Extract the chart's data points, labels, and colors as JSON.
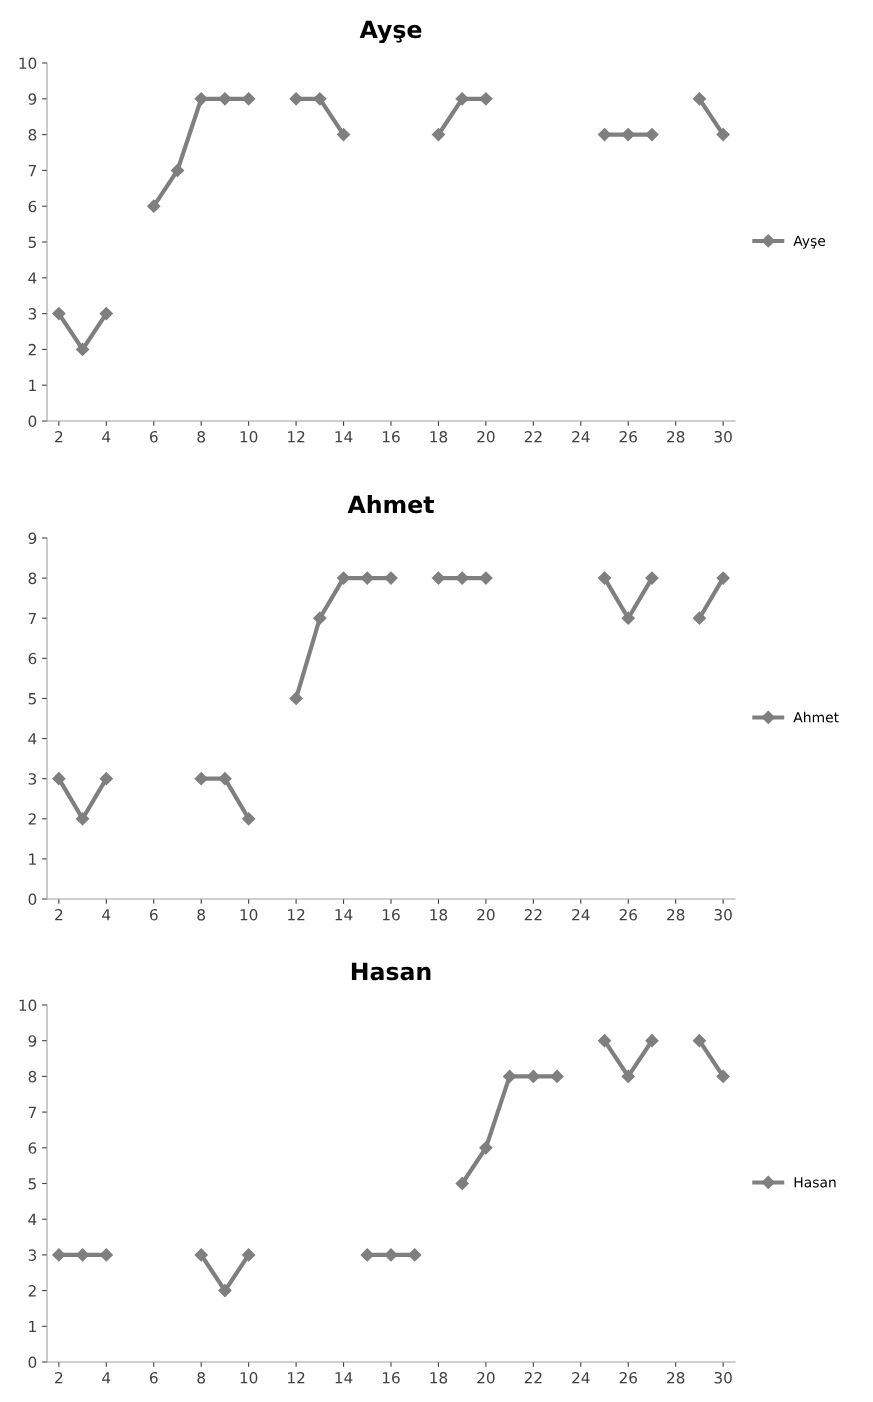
{
  "chart_data": [
    {
      "type": "line",
      "title": "Ayşe",
      "x": [
        2,
        3,
        4,
        5,
        6,
        7,
        8,
        9,
        10,
        11,
        12,
        13,
        14,
        15,
        16,
        17,
        18,
        19,
        20,
        21,
        22,
        23,
        24,
        25,
        26,
        27,
        28,
        29,
        30
      ],
      "xlim": [
        1.5,
        30.5
      ],
      "xticks": [
        2,
        4,
        6,
        8,
        10,
        12,
        14,
        16,
        18,
        20,
        22,
        24,
        26,
        28,
        30
      ],
      "ylim": [
        0,
        10
      ],
      "yticks": [
        0,
        1,
        2,
        3,
        4,
        5,
        6,
        7,
        8,
        9,
        10
      ],
      "grid": false,
      "legend": "right",
      "marker": "diamond",
      "line_style": "solid",
      "series": [
        {
          "name": "Ayşe",
          "color": "#7f7f7f",
          "values": [
            3,
            2,
            3,
            null,
            6,
            7,
            9,
            9,
            9,
            null,
            9,
            9,
            8,
            null,
            null,
            null,
            8,
            9,
            9,
            null,
            null,
            null,
            null,
            8,
            8,
            8,
            null,
            9,
            8
          ]
        }
      ]
    },
    {
      "type": "line",
      "title": "Ahmet",
      "x": [
        2,
        3,
        4,
        5,
        6,
        7,
        8,
        9,
        10,
        11,
        12,
        13,
        14,
        15,
        16,
        17,
        18,
        19,
        20,
        21,
        22,
        23,
        24,
        25,
        26,
        27,
        28,
        29,
        30
      ],
      "xlim": [
        1.5,
        30.5
      ],
      "xticks": [
        2,
        4,
        6,
        8,
        10,
        12,
        14,
        16,
        18,
        20,
        22,
        24,
        26,
        28,
        30
      ],
      "ylim": [
        0,
        9
      ],
      "yticks": [
        0,
        1,
        2,
        3,
        4,
        5,
        6,
        7,
        8,
        9
      ],
      "grid": false,
      "legend": "right",
      "marker": "diamond",
      "line_style": "solid",
      "series": [
        {
          "name": "Ahmet",
          "color": "#7f7f7f",
          "values": [
            3,
            2,
            3,
            null,
            null,
            null,
            3,
            3,
            2,
            null,
            5,
            7,
            8,
            8,
            8,
            null,
            8,
            8,
            8,
            null,
            null,
            null,
            null,
            8,
            7,
            8,
            null,
            7,
            8
          ]
        }
      ]
    },
    {
      "type": "line",
      "title": "Hasan",
      "x": [
        2,
        3,
        4,
        5,
        6,
        7,
        8,
        9,
        10,
        11,
        12,
        13,
        14,
        15,
        16,
        17,
        18,
        19,
        20,
        21,
        22,
        23,
        24,
        25,
        26,
        27,
        28,
        29,
        30
      ],
      "xlim": [
        1.5,
        30.5
      ],
      "xticks": [
        2,
        4,
        6,
        8,
        10,
        12,
        14,
        16,
        18,
        20,
        22,
        24,
        26,
        28,
        30
      ],
      "ylim": [
        0,
        10
      ],
      "yticks": [
        0,
        1,
        2,
        3,
        4,
        5,
        6,
        7,
        8,
        9,
        10
      ],
      "grid": false,
      "legend": "right",
      "marker": "diamond",
      "line_style": "solid",
      "series": [
        {
          "name": "Hasan",
          "color": "#7f7f7f",
          "values": [
            3,
            3,
            3,
            null,
            null,
            null,
            3,
            2,
            3,
            null,
            null,
            null,
            null,
            3,
            3,
            3,
            null,
            5,
            6,
            8,
            8,
            8,
            null,
            9,
            8,
            9,
            null,
            9,
            8
          ]
        }
      ]
    }
  ]
}
